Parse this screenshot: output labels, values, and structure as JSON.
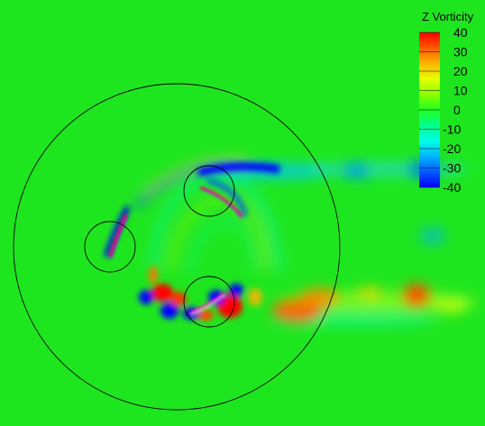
{
  "chart_data": {
    "type": "heatmap",
    "title": "",
    "colorbar": {
      "title": "Z Vorticity",
      "ticks": [
        40,
        30,
        20,
        10,
        0,
        -10,
        -20,
        -30,
        -40
      ],
      "range": [
        -40,
        40
      ],
      "colors": [
        "#ff0000",
        "#ff5a00",
        "#ffb400",
        "#e6ff00",
        "#8cff00",
        "#20ff20",
        "#00ff8c",
        "#00ffe6",
        "#00b4ff",
        "#005aff",
        "#0000ff"
      ]
    },
    "background_color": "#1ee61e",
    "field": {
      "features": [
        {
          "kind": "wake-positive",
          "value": 25
        },
        {
          "kind": "wake-negative",
          "value": -22
        },
        {
          "kind": "blade-shear",
          "value": 40
        },
        {
          "kind": "blade-shear",
          "value": -40
        }
      ]
    },
    "circles": [
      {
        "name": "rotor-disc"
      },
      {
        "name": "blade-top"
      },
      {
        "name": "blade-left"
      },
      {
        "name": "blade-bottom"
      }
    ]
  }
}
